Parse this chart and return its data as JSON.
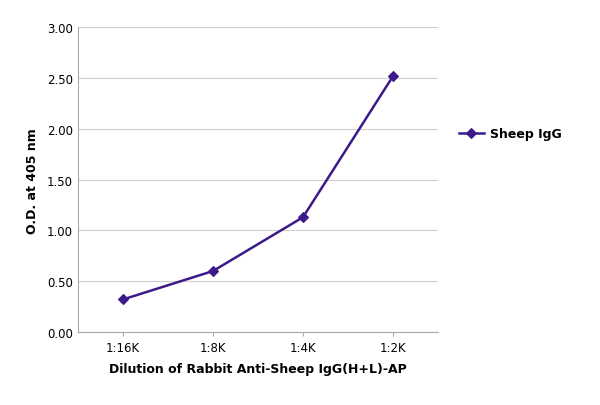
{
  "x_values": [
    1,
    2,
    3,
    4
  ],
  "x_tick_labels": [
    "1:16K",
    "1:8K",
    "1:4K",
    "1:2K"
  ],
  "y_values": [
    0.32,
    0.6,
    1.13,
    2.52
  ],
  "ylim": [
    0.0,
    3.0
  ],
  "yticks": [
    0.0,
    0.5,
    1.0,
    1.5,
    2.0,
    2.5,
    3.0
  ],
  "line_color": "#3d1a8a",
  "marker": "D",
  "marker_size": 5,
  "marker_face_color": "#3d1a8a",
  "line_width": 1.8,
  "xlabel": "Dilution of Rabbit Anti-Sheep IgG(H+L)-AP",
  "ylabel": "O.D. at 405 nm",
  "legend_label": "Sheep IgG",
  "xlabel_fontsize": 9,
  "ylabel_fontsize": 9,
  "tick_fontsize": 8.5,
  "legend_fontsize": 9,
  "background_color": "#ffffff",
  "grid_color": "#d0d0d0",
  "spine_color": "#aaaaaa"
}
